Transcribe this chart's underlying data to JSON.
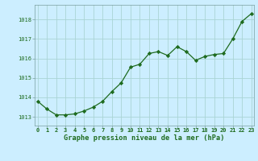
{
  "x": [
    0,
    1,
    2,
    3,
    4,
    5,
    6,
    7,
    8,
    9,
    10,
    11,
    12,
    13,
    14,
    15,
    16,
    17,
    18,
    19,
    20,
    21,
    22,
    23
  ],
  "y": [
    1013.8,
    1013.4,
    1013.1,
    1013.1,
    1013.15,
    1013.3,
    1013.5,
    1013.8,
    1014.3,
    1014.75,
    1015.55,
    1015.7,
    1016.25,
    1016.35,
    1016.15,
    1016.6,
    1016.35,
    1015.9,
    1016.1,
    1016.2,
    1016.25,
    1017.0,
    1017.9,
    1018.3
  ],
  "line_color": "#1e6b1e",
  "marker_color": "#1e6b1e",
  "bg_color": "#cceeff",
  "grid_color": "#aad4d4",
  "xlabel": "Graphe pression niveau de la mer (hPa)",
  "xlabel_color": "#1e6b1e",
  "ylabel_ticks": [
    1013,
    1014,
    1015,
    1016,
    1017,
    1018
  ],
  "ylim": [
    1012.55,
    1018.75
  ],
  "xlim": [
    -0.3,
    23.3
  ],
  "tick_color": "#1e6b1e",
  "spine_color": "#7a9e9e",
  "tick_fontsize": 5.0,
  "xlabel_fontsize": 6.2,
  "linewidth": 0.9,
  "markersize": 2.2
}
